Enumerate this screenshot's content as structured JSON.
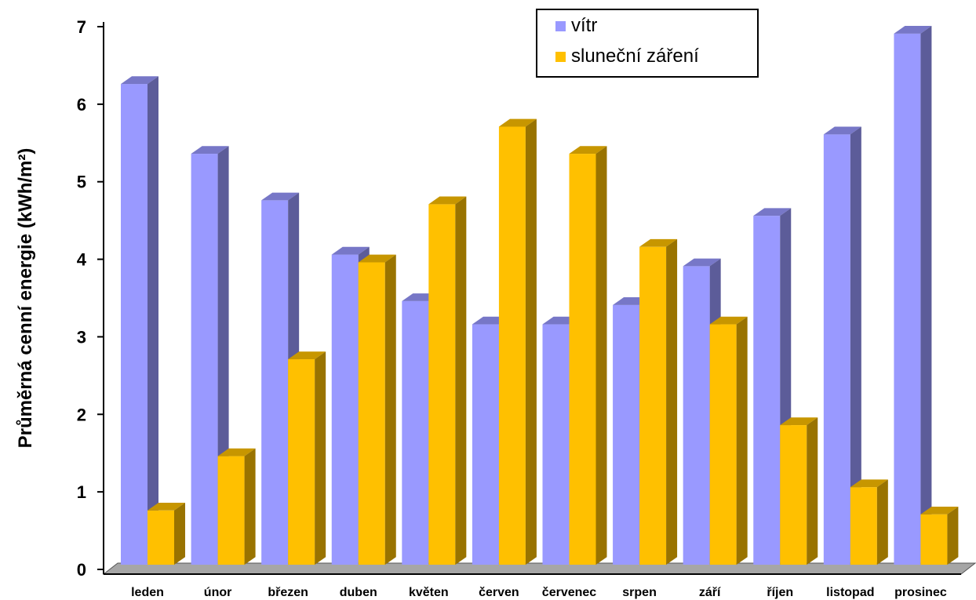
{
  "chart_data": {
    "type": "bar",
    "ylabel": "Průměrná cenní energie (kWh/m²)",
    "y_ticks": [
      "0",
      "1",
      "2",
      "3",
      "4",
      "5",
      "6",
      "7"
    ],
    "ylim": [
      0,
      7
    ],
    "categories": [
      "leden",
      "únor",
      "březen",
      "duben",
      "květen",
      "červen",
      "červenec",
      "srpen",
      "září",
      "říjen",
      "listopad",
      "prosinec"
    ],
    "series": [
      {
        "name": "vítr",
        "color": "#9999ff",
        "values": [
          6.2,
          5.3,
          4.7,
          4.0,
          3.4,
          3.1,
          3.1,
          3.35,
          3.85,
          4.5,
          5.55,
          6.85
        ]
      },
      {
        "name": "sluneční záření",
        "color": "#ffc000",
        "values": [
          0.7,
          1.4,
          2.65,
          3.9,
          4.65,
          5.65,
          5.3,
          4.1,
          3.1,
          1.8,
          1.0,
          0.65
        ]
      }
    ],
    "legend": {
      "position": "top-right"
    },
    "grid": false
  }
}
